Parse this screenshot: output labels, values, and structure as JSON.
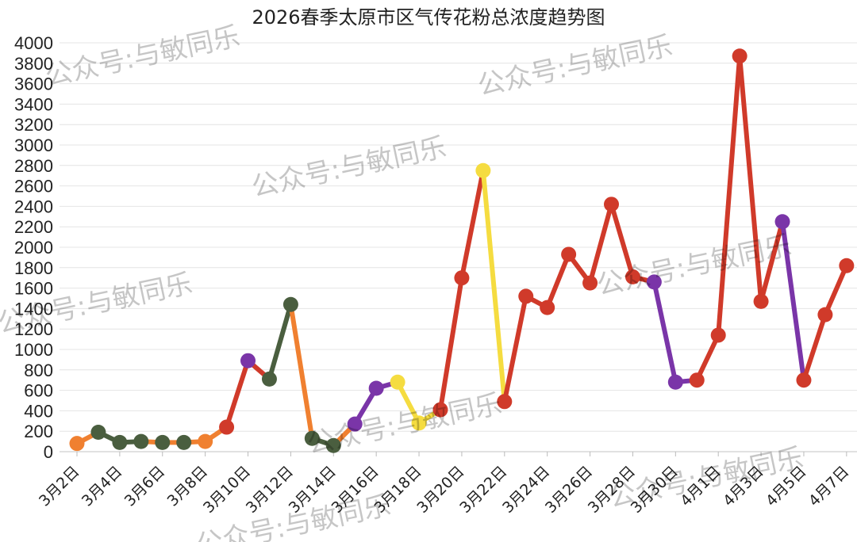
{
  "chart_data": {
    "type": "line",
    "title": "2026春季太原市区气传花粉总浓度趋势图",
    "xlabel": "",
    "ylabel": "",
    "ylim": [
      0,
      4000
    ],
    "ytick_step": 200,
    "grid": "horizontal",
    "legend": "none",
    "watermark": "公众号:与敏同乐",
    "x": [
      "3月2日",
      "3月3日",
      "3月4日",
      "3月5日",
      "3月6日",
      "3月7日",
      "3月8日",
      "3月9日",
      "3月10日",
      "3月11日",
      "3月12日",
      "3月13日",
      "3月14日",
      "3月15日",
      "3月16日",
      "3月17日",
      "3月18日",
      "3月19日",
      "3月20日",
      "3月21日",
      "3月22日",
      "3月23日",
      "3月24日",
      "3月25日",
      "3月26日",
      "3月27日",
      "3月28日",
      "3月29日",
      "3月30日",
      "3月31日",
      "4月1日",
      "4月2日",
      "4月3日",
      "4月4日",
      "4月5日",
      "4月6日",
      "4月7日"
    ],
    "xtick_labels": [
      "3月2日",
      "3月4日",
      "3月6日",
      "3月8日",
      "3月10日",
      "3月12日",
      "3月14日",
      "3月16日",
      "3月18日",
      "3月20日",
      "3月22日",
      "3月24日",
      "3月26日",
      "3月28日",
      "3月30日",
      "4月1日",
      "4月3日",
      "4月5日",
      "4月7日"
    ],
    "values": [
      80,
      190,
      90,
      100,
      90,
      90,
      100,
      240,
      890,
      710,
      1440,
      130,
      60,
      270,
      620,
      680,
      280,
      410,
      1700,
      2750,
      490,
      1520,
      1410,
      1930,
      1650,
      2420,
      1710,
      1660,
      680,
      700,
      1140,
      3870,
      1470,
      2250,
      700,
      1340,
      1820
    ],
    "point_colors": [
      "#F08030",
      "#4A5E3F",
      "#4A5E3F",
      "#4A5E3F",
      "#4A5E3F",
      "#4A5E3F",
      "#F08030",
      "#D03A2A",
      "#7A35A8",
      "#4A5E3F",
      "#4A5E3F",
      "#4A5E3F",
      "#4A5E3F",
      "#7A35A8",
      "#7A35A8",
      "#F5DC40",
      "#F5DC40",
      "#D03A2A",
      "#D03A2A",
      "#F5DC40",
      "#D03A2A",
      "#D03A2A",
      "#D03A2A",
      "#D03A2A",
      "#D03A2A",
      "#D03A2A",
      "#D03A2A",
      "#7A35A8",
      "#7A35A8",
      "#D03A2A",
      "#D03A2A",
      "#D03A2A",
      "#D03A2A",
      "#7A35A8",
      "#D03A2A",
      "#D03A2A",
      "#D03A2A"
    ],
    "segment_colors": [
      "#F08030",
      "#4A5E3F",
      "#4A5E3F",
      "#F08030",
      "#F08030",
      "#F08030",
      "#F08030",
      "#D03A2A",
      "#D03A2A",
      "#4A5E3F",
      "#F08030",
      "#4A5E3F",
      "#F08030",
      "#7A35A8",
      "#7A35A8",
      "#F5DC40",
      "#F5DC40",
      "#D03A2A",
      "#D03A2A",
      "#F5DC40",
      "#D03A2A",
      "#D03A2A",
      "#D03A2A",
      "#D03A2A",
      "#D03A2A",
      "#D03A2A",
      "#D03A2A",
      "#7A35A8",
      "#7A35A8",
      "#D03A2A",
      "#D03A2A",
      "#D03A2A",
      "#D03A2A",
      "#7A35A8",
      "#D03A2A",
      "#D03A2A"
    ]
  }
}
